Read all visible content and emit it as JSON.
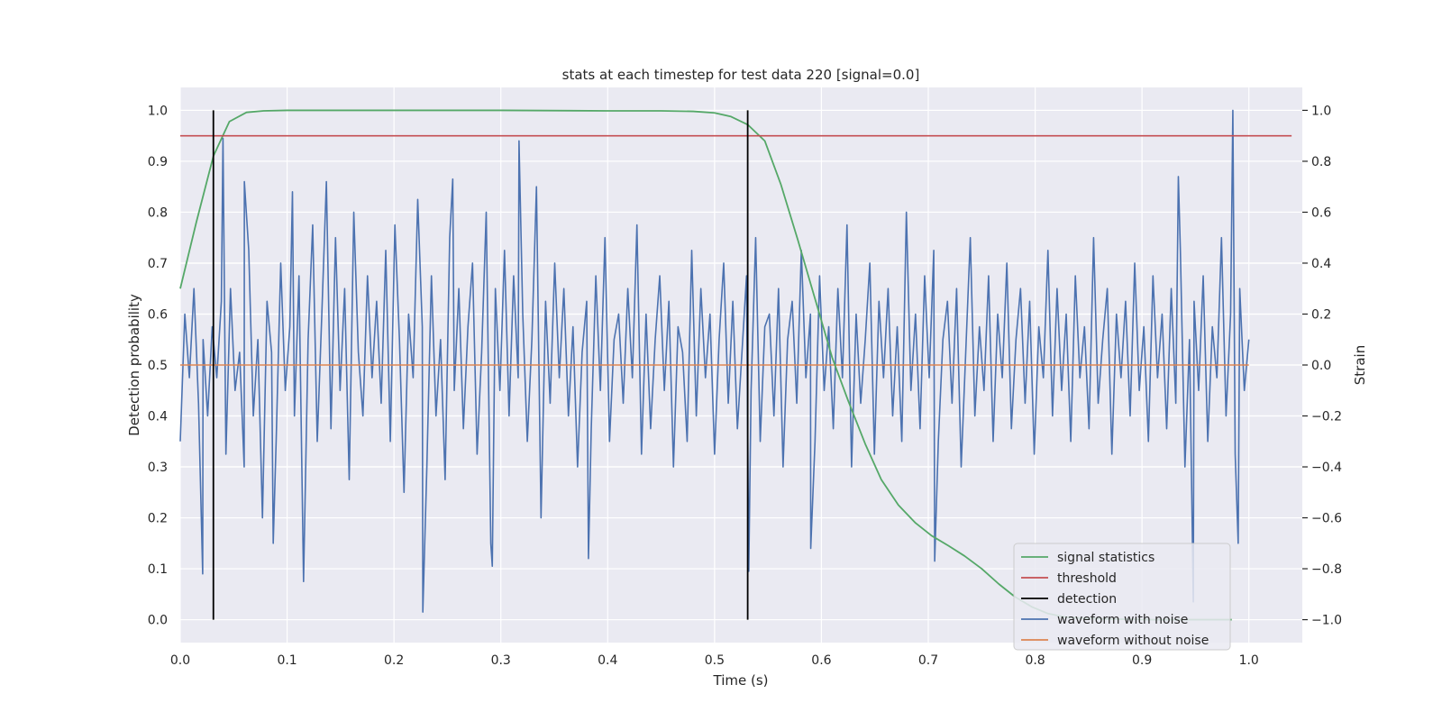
{
  "chart_data": {
    "type": "line",
    "title": "stats at each timestep for test data 220 [signal=0.0]",
    "xlabel": "Time (s)",
    "ylabel_left": "Detection probability",
    "ylabel_right": "Strain",
    "xlim": [
      0.0,
      1.05
    ],
    "ylim_left": [
      -0.045,
      1.045
    ],
    "ylim_right": [
      -1.09,
      1.09
    ],
    "xticks": [
      "0.0",
      "0.1",
      "0.2",
      "0.3",
      "0.4",
      "0.5",
      "0.6",
      "0.7",
      "0.8",
      "0.9",
      "1.0"
    ],
    "yticks_left": [
      "0.0",
      "0.1",
      "0.2",
      "0.3",
      "0.4",
      "0.5",
      "0.6",
      "0.7",
      "0.8",
      "0.9",
      "1.0"
    ],
    "yticks_right": [
      "−1.0",
      "−0.8",
      "−0.6",
      "−0.4",
      "−0.2",
      "0.0",
      "0.2",
      "0.4",
      "0.6",
      "0.8",
      "1.0"
    ],
    "grid": true,
    "background": "#eaeaf2",
    "legend_position": "lower-right",
    "series": [
      {
        "name": "signal statistics",
        "axis": "left",
        "color": "#55a868",
        "x": [
          0.0,
          0.015,
          0.031,
          0.046,
          0.062,
          0.078,
          0.1,
          0.15,
          0.2,
          0.3,
          0.4,
          0.45,
          0.48,
          0.5,
          0.515,
          0.531,
          0.547,
          0.562,
          0.578,
          0.594,
          0.61,
          0.625,
          0.641,
          0.656,
          0.672,
          0.688,
          0.703,
          0.719,
          0.734,
          0.75,
          0.766,
          0.781,
          0.797,
          0.812,
          0.828,
          0.844,
          0.86,
          0.875,
          0.89,
          0.906,
          0.922,
          0.938,
          0.953,
          0.969,
          0.984
        ],
        "y": [
          0.65,
          0.78,
          0.91,
          0.978,
          0.996,
          0.999,
          1.0,
          1.0,
          1.0,
          1.0,
          0.999,
          0.999,
          0.998,
          0.995,
          0.988,
          0.972,
          0.94,
          0.855,
          0.745,
          0.63,
          0.515,
          0.43,
          0.345,
          0.275,
          0.225,
          0.19,
          0.165,
          0.145,
          0.125,
          0.1,
          0.07,
          0.045,
          0.025,
          0.012,
          0.005,
          0.003,
          0.002,
          0.001,
          0.001,
          0.0,
          0.0,
          0.0,
          0.0,
          0.0,
          0.0
        ]
      },
      {
        "name": "threshold",
        "axis": "left",
        "color": "#c44e52",
        "x": [
          0.0,
          1.04
        ],
        "y": [
          0.95,
          0.95
        ]
      },
      {
        "name": "detection",
        "axis": "left",
        "color": "#000000",
        "segments": [
          {
            "x": 0.031,
            "y": [
              0.0,
              1.0
            ]
          },
          {
            "x": 0.531,
            "y": [
              0.0,
              1.0
            ]
          }
        ]
      },
      {
        "name": "waveform with noise",
        "axis": "right",
        "color": "#4c72b0",
        "x_range": [
          0.0,
          1.0
        ],
        "y": [
          -0.3,
          0.2,
          -0.05,
          0.3,
          -0.15,
          0.1,
          -0.2,
          0.15,
          -0.05,
          0.25,
          -0.35,
          0.3,
          -0.1,
          0.05,
          -0.4,
          0.45,
          -0.2,
          0.1,
          -0.6,
          0.25,
          0.05,
          -0.3,
          0.4,
          -0.1,
          0.15,
          -0.2,
          0.35,
          -0.85,
          0.1,
          0.55,
          -0.3,
          0.2,
          0.72,
          -0.25,
          0.5,
          -0.1,
          0.3,
          -0.45,
          0.6,
          0.05,
          -0.2,
          0.35,
          -0.05,
          0.25,
          -0.15,
          0.45,
          -0.3,
          0.55,
          0.1,
          -0.5,
          0.2,
          -0.05,
          0.65,
          0.15,
          -0.4,
          0.35,
          -0.2,
          0.1,
          -0.45,
          0.5,
          -0.1,
          0.3,
          -0.25,
          0.15,
          0.4,
          -0.35,
          0.05,
          0.6,
          -0.7,
          0.3,
          -0.1,
          0.45,
          -0.2,
          0.35,
          -0.05,
          0.2,
          -0.3,
          0.1,
          0.7,
          -0.6,
          0.25,
          -0.15,
          0.4,
          -0.05,
          0.3,
          -0.2,
          0.15,
          -0.4,
          0.05,
          0.25,
          -0.25,
          0.35,
          -0.1,
          0.5,
          -0.3,
          0.1,
          0.2,
          -0.15,
          0.3,
          -0.05,
          0.55,
          -0.35,
          0.2,
          -0.25,
          0.1,
          0.35,
          -0.1,
          0.25,
          -0.4,
          0.15,
          0.05,
          -0.3,
          0.45,
          -0.2,
          0.3,
          -0.05,
          0.2,
          -0.35,
          0.1,
          0.4,
          -0.15,
          0.25,
          -0.25,
          0.05,
          0.35,
          -0.1,
          0.5,
          -0.3,
          0.15,
          0.2,
          -0.2,
          0.3,
          -0.4,
          0.1,
          0.25,
          -0.15,
          0.45,
          -0.05,
          0.2,
          -0.3,
          0.35,
          -0.1,
          0.15,
          -0.25,
          0.3,
          -0.05,
          0.55,
          -0.4,
          0.2,
          -0.15,
          0.1,
          0.4,
          -0.35,
          0.25,
          -0.05,
          0.3,
          -0.2,
          0.15,
          -0.3,
          0.6,
          -0.1,
          0.2,
          -0.25,
          0.35,
          -0.05,
          0.45,
          -0.3,
          0.1,
          0.25,
          -0.15,
          0.3,
          -0.4,
          0.05,
          0.5,
          -0.2,
          0.15,
          -0.1,
          0.35,
          -0.3,
          0.2,
          -0.05,
          0.4,
          -0.25,
          0.1,
          0.3,
          -0.15,
          0.25,
          -0.35,
          0.15,
          -0.05,
          0.45,
          -0.2,
          0.3,
          -0.1,
          0.2,
          -0.3,
          0.35,
          -0.05,
          0.15,
          -0.25,
          0.5,
          -0.15,
          0.1,
          0.3,
          -0.35,
          0.2,
          -0.05,
          0.25,
          -0.2,
          0.4,
          -0.1,
          0.15,
          -0.3,
          0.35,
          -0.05,
          0.2,
          -0.25,
          0.3,
          -0.15,
          0.45,
          -0.4,
          0.1,
          0.25,
          -0.1,
          0.35,
          -0.3,
          0.15,
          -0.05,
          0.5,
          -0.2,
          0.2,
          -0.35,
          0.3,
          -0.1,
          0.1
        ],
        "extremes": [
          {
            "x": 0.021,
            "y": -0.82
          },
          {
            "x": 0.04,
            "y": 0.89
          },
          {
            "x": 0.06,
            "y": 0.72
          },
          {
            "x": 0.087,
            "y": -0.7
          },
          {
            "x": 0.105,
            "y": 0.68
          },
          {
            "x": 0.227,
            "y": -0.97
          },
          {
            "x": 0.255,
            "y": 0.73
          },
          {
            "x": 0.292,
            "y": -0.79
          },
          {
            "x": 0.317,
            "y": 0.88
          },
          {
            "x": 0.382,
            "y": -0.76
          },
          {
            "x": 0.532,
            "y": -0.81
          },
          {
            "x": 0.59,
            "y": -0.72
          },
          {
            "x": 0.706,
            "y": -0.77
          },
          {
            "x": 0.934,
            "y": 0.74
          },
          {
            "x": 0.948,
            "y": -0.93
          },
          {
            "x": 0.985,
            "y": 1.0
          },
          {
            "x": 0.99,
            "y": -0.7
          }
        ]
      },
      {
        "name": "waveform without noise",
        "axis": "right",
        "color": "#dd8452",
        "x": [
          0.0,
          1.0
        ],
        "y": [
          0.0,
          0.0
        ]
      }
    ]
  }
}
